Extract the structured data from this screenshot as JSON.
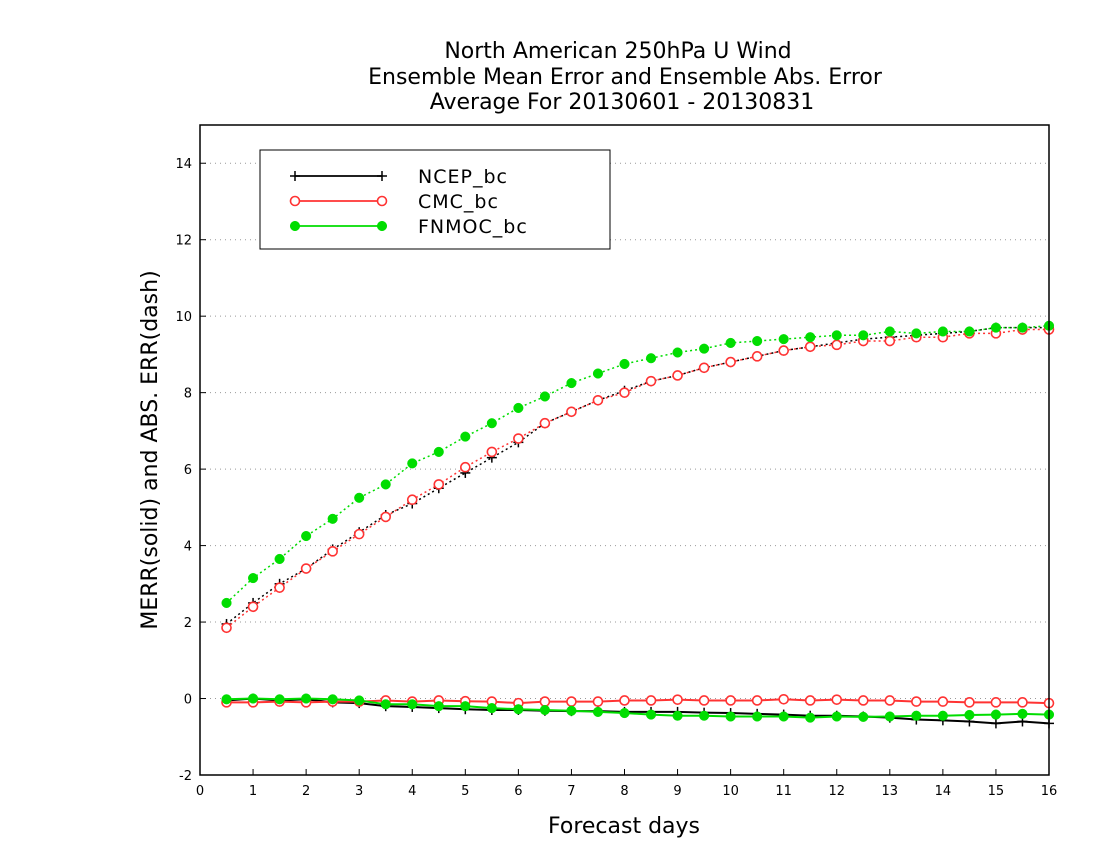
{
  "chart_data": {
    "type": "line",
    "title_lines": [
      "North American 250hPa U Wind",
      "Ensemble Mean Error and Ensemble Abs. Error",
      "Average For 20130601 - 20130831"
    ],
    "xlabel": "Forecast days",
    "ylabel": "MERR(solid) and ABS. ERR(dash)",
    "xlim": [
      0,
      16
    ],
    "ylim": [
      -2,
      15
    ],
    "x_ticks": [
      0,
      1,
      2,
      3,
      4,
      5,
      6,
      7,
      8,
      9,
      10,
      11,
      12,
      13,
      14,
      15,
      16
    ],
    "y_ticks": [
      -2,
      0,
      2,
      4,
      6,
      8,
      10,
      12,
      14
    ],
    "y_tick_labels": [
      "-2",
      "0",
      "2",
      "4",
      "6",
      "8",
      "10",
      "12",
      "14"
    ],
    "grid": "horizontal dotted",
    "legend_position": "top-left",
    "x": [
      0.5,
      1,
      1.5,
      2,
      2.5,
      3,
      3.5,
      4,
      4.5,
      5,
      5.5,
      6,
      6.5,
      7,
      7.5,
      8,
      8.5,
      9,
      9.5,
      10,
      10.5,
      11,
      11.5,
      12,
      12.5,
      13,
      13.5,
      14,
      14.5,
      15,
      15.5,
      16
    ],
    "series": [
      {
        "name": "NCEP_bc",
        "color": "#000000",
        "marker": "plus",
        "merr": [
          -0.05,
          0.0,
          -0.05,
          -0.02,
          -0.1,
          -0.12,
          -0.2,
          -0.22,
          -0.25,
          -0.28,
          -0.3,
          -0.3,
          -0.32,
          -0.33,
          -0.33,
          -0.35,
          -0.35,
          -0.35,
          -0.37,
          -0.38,
          -0.4,
          -0.42,
          -0.45,
          -0.45,
          -0.47,
          -0.5,
          -0.55,
          -0.57,
          -0.6,
          -0.65,
          -0.6,
          -0.65
        ],
        "abs_err": [
          1.95,
          2.5,
          3.0,
          3.4,
          3.9,
          4.35,
          4.8,
          5.1,
          5.5,
          5.9,
          6.3,
          6.7,
          7.2,
          7.5,
          7.8,
          8.05,
          8.3,
          8.45,
          8.65,
          8.8,
          8.95,
          9.1,
          9.2,
          9.3,
          9.4,
          9.45,
          9.5,
          9.55,
          9.6,
          9.7,
          9.7,
          9.7
        ]
      },
      {
        "name": "CMC_bc",
        "color": "#ff3333",
        "marker": "open-circle",
        "merr": [
          -0.1,
          -0.1,
          -0.08,
          -0.1,
          -0.08,
          -0.08,
          -0.05,
          -0.08,
          -0.05,
          -0.07,
          -0.08,
          -0.12,
          -0.08,
          -0.08,
          -0.08,
          -0.05,
          -0.05,
          -0.03,
          -0.05,
          -0.05,
          -0.05,
          -0.02,
          -0.05,
          -0.03,
          -0.05,
          -0.05,
          -0.08,
          -0.08,
          -0.1,
          -0.1,
          -0.1,
          -0.12
        ],
        "abs_err": [
          1.85,
          2.4,
          2.9,
          3.4,
          3.85,
          4.3,
          4.75,
          5.2,
          5.6,
          6.05,
          6.45,
          6.8,
          7.2,
          7.5,
          7.8,
          8.0,
          8.3,
          8.45,
          8.65,
          8.8,
          8.95,
          9.1,
          9.2,
          9.25,
          9.35,
          9.35,
          9.45,
          9.45,
          9.55,
          9.55,
          9.65,
          9.65
        ]
      },
      {
        "name": "FNMOC_bc",
        "color": "#00dd00",
        "marker": "filled-circle",
        "merr": [
          -0.02,
          0.0,
          -0.02,
          0.0,
          -0.02,
          -0.05,
          -0.15,
          -0.15,
          -0.2,
          -0.2,
          -0.25,
          -0.28,
          -0.3,
          -0.32,
          -0.35,
          -0.38,
          -0.42,
          -0.45,
          -0.45,
          -0.47,
          -0.47,
          -0.47,
          -0.5,
          -0.47,
          -0.48,
          -0.47,
          -0.45,
          -0.45,
          -0.43,
          -0.42,
          -0.4,
          -0.42
        ],
        "abs_err": [
          2.5,
          3.15,
          3.65,
          4.25,
          4.7,
          5.25,
          5.6,
          6.15,
          6.45,
          6.85,
          7.2,
          7.6,
          7.9,
          8.25,
          8.5,
          8.75,
          8.9,
          9.05,
          9.15,
          9.3,
          9.35,
          9.4,
          9.45,
          9.5,
          9.5,
          9.6,
          9.55,
          9.6,
          9.6,
          9.7,
          9.7,
          9.75
        ]
      }
    ]
  }
}
